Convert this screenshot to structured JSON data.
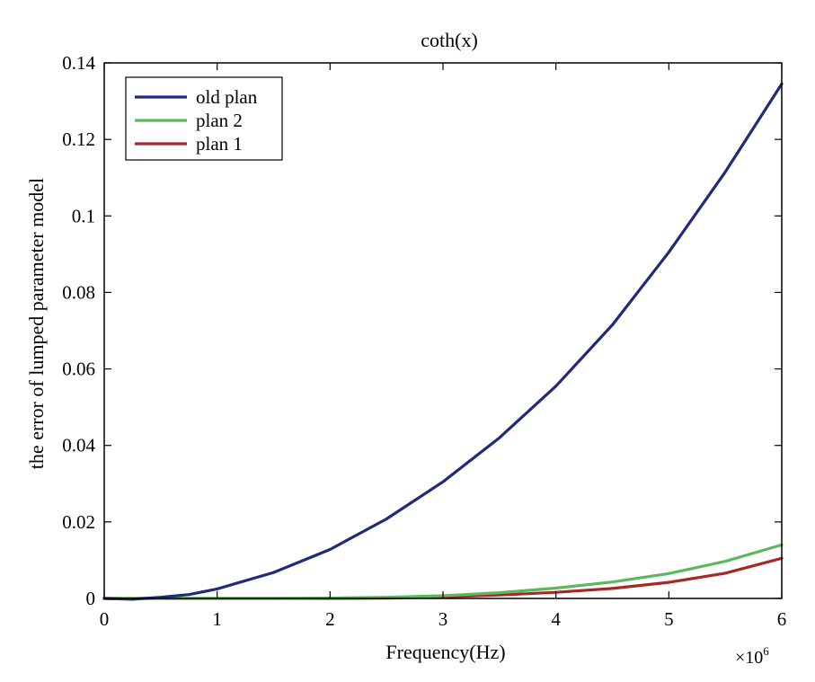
{
  "chart_data": {
    "type": "line",
    "title": "coth(x)",
    "xlabel": "Frequency(Hz)",
    "ylabel": "the error of lumped parameter model",
    "x_multiplier_base": "×10",
    "x_multiplier_exp": "6",
    "xlim": [
      0,
      6
    ],
    "ylim": [
      0,
      0.14
    ],
    "xticks": [
      0,
      1,
      2,
      3,
      4,
      5,
      6
    ],
    "xtick_labels": [
      "0",
      "1",
      "2",
      "3",
      "4",
      "5",
      "6"
    ],
    "yticks": [
      0,
      0.02,
      0.04,
      0.06,
      0.08,
      0.1,
      0.12,
      0.14
    ],
    "ytick_labels": [
      "0",
      "0.02",
      "0.04",
      "0.06",
      "0.08",
      "0.1",
      "0.12",
      "0.14"
    ],
    "grid": false,
    "legend_position": "top-left",
    "series": [
      {
        "name": "old plan",
        "color": "#1f2a7a",
        "x": [
          0,
          0.25,
          0.5,
          0.75,
          1,
          1.5,
          2,
          2.5,
          3,
          3.5,
          4,
          4.5,
          5,
          5.5,
          6
        ],
        "y": [
          0,
          -0.0002,
          0.0003,
          0.001,
          0.0025,
          0.0068,
          0.0128,
          0.0208,
          0.0305,
          0.042,
          0.0555,
          0.0715,
          0.0905,
          0.1115,
          0.1345
        ]
      },
      {
        "name": "plan 2",
        "color": "#5cb85c",
        "x": [
          0,
          0.5,
          1,
          1.5,
          2,
          2.5,
          3,
          3.5,
          4,
          4.5,
          5,
          5.5,
          6
        ],
        "y": [
          0,
          0,
          0,
          0,
          0.0001,
          0.0003,
          0.0007,
          0.0015,
          0.0027,
          0.0043,
          0.0065,
          0.0097,
          0.014
        ]
      },
      {
        "name": "plan 1",
        "color": "#a82828",
        "x": [
          0,
          0.5,
          1,
          1.5,
          2,
          2.5,
          3,
          3.5,
          4,
          4.5,
          5,
          5.5,
          6
        ],
        "y": [
          0,
          0,
          0,
          0,
          0,
          0.0001,
          0.0004,
          0.0009,
          0.0016,
          0.0026,
          0.0042,
          0.0066,
          0.0105
        ]
      }
    ]
  }
}
